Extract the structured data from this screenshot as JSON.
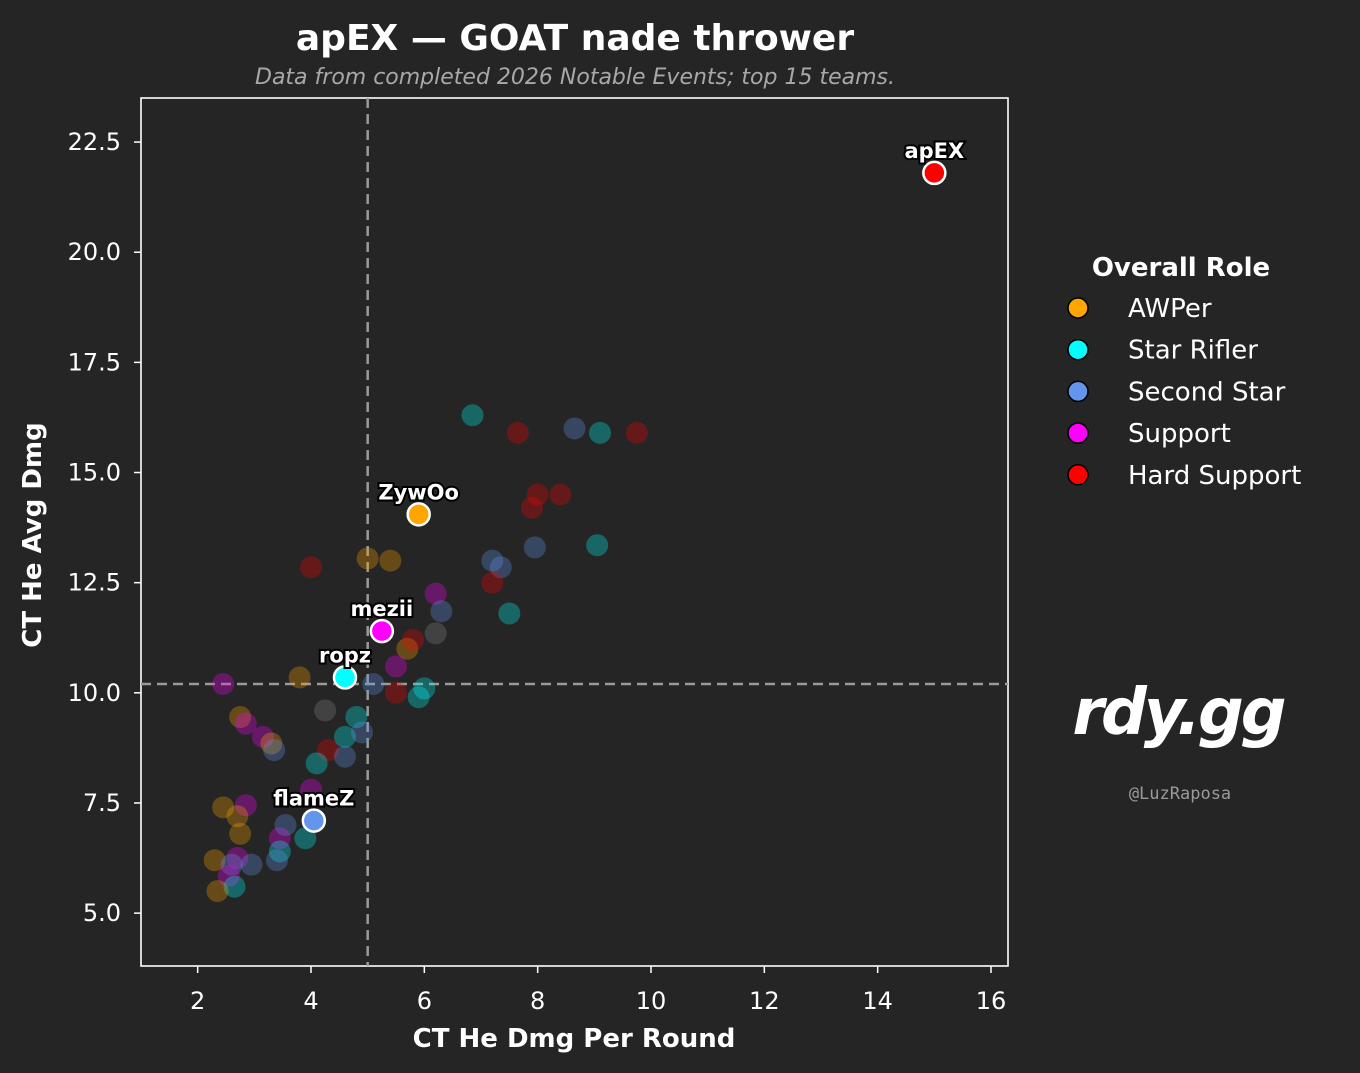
{
  "chart_data": {
    "type": "scatter",
    "title": "apEX — GOAT nade thrower",
    "subtitle": "Data from completed 2026 Notable Events; top 15 teams.",
    "xlabel": "CT He Dmg Per Round",
    "ylabel": "CT He Avg Dmg",
    "xlim": [
      1.0,
      16.3
    ],
    "ylim": [
      3.8,
      23.5
    ],
    "xticks": [
      2,
      4,
      6,
      8,
      10,
      12,
      14,
      16
    ],
    "yticks": [
      5.0,
      7.5,
      10.0,
      12.5,
      15.0,
      17.5,
      20.0,
      22.5
    ],
    "ref_lines": {
      "x": 5.0,
      "y": 10.2,
      "style": "dashed"
    },
    "grid": false,
    "legend": {
      "title": "Overall Role",
      "placement": "right",
      "entries": [
        {
          "name": "AWPer",
          "color": "#ffa500"
        },
        {
          "name": "Star Rifler",
          "color": "#00ffff"
        },
        {
          "name": "Second Star",
          "color": "#6495ed"
        },
        {
          "name": "Support",
          "color": "#ff00ff"
        },
        {
          "name": "Hard Support",
          "color": "#ff0000"
        }
      ]
    },
    "unknown_color": "#888888",
    "highlighted": [
      {
        "label": "apEX",
        "x": 15.0,
        "y": 21.8,
        "role": "Hard Support"
      },
      {
        "label": "ZywOo",
        "x": 5.9,
        "y": 14.05,
        "role": "AWPer"
      },
      {
        "label": "mezii",
        "x": 5.25,
        "y": 11.4,
        "role": "Support"
      },
      {
        "label": "ropz",
        "x": 4.6,
        "y": 10.35,
        "role": "Star Rifler"
      },
      {
        "label": "flameZ",
        "x": 4.05,
        "y": 7.1,
        "role": "Second Star"
      }
    ],
    "points": [
      {
        "x": 6.85,
        "y": 16.3,
        "role": "Star Rifler"
      },
      {
        "x": 7.65,
        "y": 15.9,
        "role": "Hard Support"
      },
      {
        "x": 8.65,
        "y": 16.0,
        "role": "Second Star"
      },
      {
        "x": 9.1,
        "y": 15.9,
        "role": "Star Rifler"
      },
      {
        "x": 9.75,
        "y": 15.9,
        "role": "Hard Support"
      },
      {
        "x": 8.0,
        "y": 14.5,
        "role": "Hard Support"
      },
      {
        "x": 8.4,
        "y": 14.5,
        "role": "Hard Support"
      },
      {
        "x": 7.9,
        "y": 14.2,
        "role": "Hard Support"
      },
      {
        "x": 5.0,
        "y": 13.05,
        "role": "AWPer"
      },
      {
        "x": 5.4,
        "y": 13.0,
        "role": "AWPer"
      },
      {
        "x": 7.2,
        "y": 13.0,
        "role": "Second Star"
      },
      {
        "x": 7.35,
        "y": 12.85,
        "role": "Second Star"
      },
      {
        "x": 7.95,
        "y": 13.3,
        "role": "Second Star"
      },
      {
        "x": 9.05,
        "y": 13.35,
        "role": "Star Rifler"
      },
      {
        "x": 4.0,
        "y": 12.85,
        "role": "Hard Support"
      },
      {
        "x": 7.2,
        "y": 12.5,
        "role": "Hard Support"
      },
      {
        "x": 6.2,
        "y": 12.25,
        "role": "Support"
      },
      {
        "x": 6.3,
        "y": 11.85,
        "role": "Second Star"
      },
      {
        "x": 7.5,
        "y": 11.8,
        "role": "Star Rifler"
      },
      {
        "x": 6.2,
        "y": 11.35,
        "role": "Unknown"
      },
      {
        "x": 5.7,
        "y": 11.0,
        "role": "AWPer"
      },
      {
        "x": 5.8,
        "y": 11.2,
        "role": "Hard Support"
      },
      {
        "x": 5.5,
        "y": 10.6,
        "role": "Support"
      },
      {
        "x": 3.8,
        "y": 10.35,
        "role": "AWPer"
      },
      {
        "x": 2.45,
        "y": 10.2,
        "role": "Support"
      },
      {
        "x": 5.1,
        "y": 10.2,
        "role": "Second Star"
      },
      {
        "x": 5.5,
        "y": 10.0,
        "role": "Hard Support"
      },
      {
        "x": 5.9,
        "y": 9.9,
        "role": "Star Rifler"
      },
      {
        "x": 6.0,
        "y": 10.1,
        "role": "Star Rifler"
      },
      {
        "x": 4.25,
        "y": 9.6,
        "role": "Unknown"
      },
      {
        "x": 4.8,
        "y": 9.45,
        "role": "Star Rifler"
      },
      {
        "x": 4.6,
        "y": 9.0,
        "role": "Star Rifler"
      },
      {
        "x": 4.9,
        "y": 9.1,
        "role": "Second Star"
      },
      {
        "x": 2.75,
        "y": 9.45,
        "role": "AWPer"
      },
      {
        "x": 2.85,
        "y": 9.3,
        "role": "Support"
      },
      {
        "x": 3.15,
        "y": 9.0,
        "role": "Support"
      },
      {
        "x": 3.3,
        "y": 8.85,
        "role": "AWPer"
      },
      {
        "x": 3.35,
        "y": 8.7,
        "role": "Second Star"
      },
      {
        "x": 4.3,
        "y": 8.7,
        "role": "Hard Support"
      },
      {
        "x": 4.6,
        "y": 8.55,
        "role": "Second Star"
      },
      {
        "x": 4.1,
        "y": 8.4,
        "role": "Star Rifler"
      },
      {
        "x": 4.0,
        "y": 7.8,
        "role": "Support"
      },
      {
        "x": 2.45,
        "y": 7.4,
        "role": "AWPer"
      },
      {
        "x": 2.85,
        "y": 7.45,
        "role": "Support"
      },
      {
        "x": 2.7,
        "y": 7.2,
        "role": "AWPer"
      },
      {
        "x": 2.75,
        "y": 6.8,
        "role": "AWPer"
      },
      {
        "x": 3.45,
        "y": 6.7,
        "role": "Support"
      },
      {
        "x": 3.55,
        "y": 7.0,
        "role": "Second Star"
      },
      {
        "x": 3.9,
        "y": 6.7,
        "role": "Star Rifler"
      },
      {
        "x": 3.45,
        "y": 6.4,
        "role": "Star Rifler"
      },
      {
        "x": 3.4,
        "y": 6.2,
        "role": "Second Star"
      },
      {
        "x": 2.3,
        "y": 6.2,
        "role": "AWPer"
      },
      {
        "x": 2.7,
        "y": 6.25,
        "role": "Support"
      },
      {
        "x": 2.6,
        "y": 6.1,
        "role": "Second Star"
      },
      {
        "x": 2.95,
        "y": 6.1,
        "role": "Second Star"
      },
      {
        "x": 2.55,
        "y": 5.85,
        "role": "Support"
      },
      {
        "x": 2.65,
        "y": 5.6,
        "role": "Star Rifler"
      },
      {
        "x": 2.35,
        "y": 5.5,
        "role": "AWPer"
      }
    ]
  },
  "brand": {
    "logo_text": "rdy.gg",
    "credit": "@LuzRaposa"
  }
}
